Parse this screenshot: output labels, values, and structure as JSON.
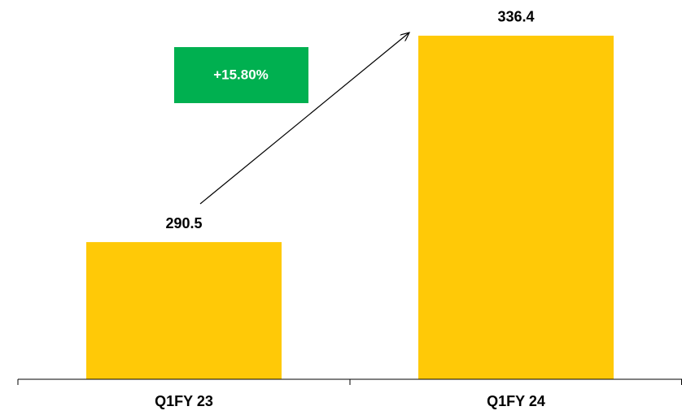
{
  "chart_data": {
    "type": "bar",
    "categories": [
      "Q1FY 23",
      "Q1FY 24"
    ],
    "values": [
      290.5,
      336.4
    ],
    "color": "#FFC907",
    "ylim": [
      260,
      340
    ],
    "annotation": {
      "text": "+15.80%",
      "color": "#00B050"
    }
  }
}
